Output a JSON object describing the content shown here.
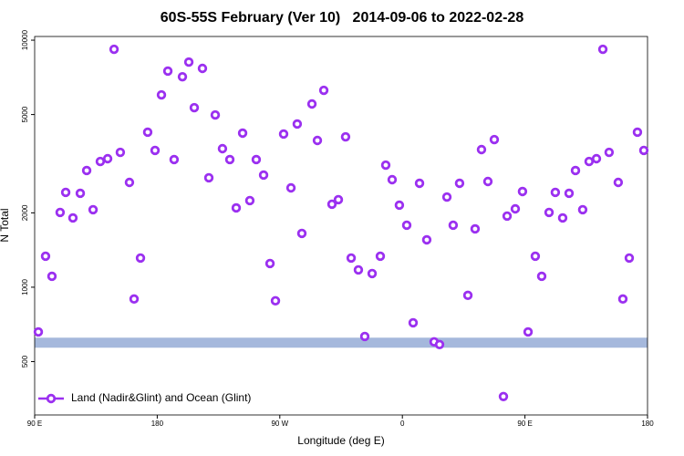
{
  "chart_data": {
    "type": "scatter",
    "title": "60S-55S February (Ver 10)   2014-09-06 to 2022-02-28",
    "xlabel": "Longitude (deg E)",
    "ylabel": "N Total",
    "log_y": true,
    "grid": false,
    "legend": "bottom-left",
    "xlim": [
      90,
      540
    ],
    "ylim": [
      304,
      10350
    ],
    "xticks": [
      {
        "value": 90,
        "label": "90 E"
      },
      {
        "value": 180,
        "label": "180"
      },
      {
        "value": 270,
        "label": "90 W"
      },
      {
        "value": 360,
        "label": "0"
      },
      {
        "value": 450,
        "label": "90 E"
      },
      {
        "value": 540,
        "label": "180"
      }
    ],
    "yticks": [
      500,
      1000,
      2000,
      5000,
      10000
    ],
    "hline": {
      "value": 596,
      "color": "#a5b8dc"
    },
    "series": [
      {
        "name": "Land (Nadir&Glint) and Ocean (Glint)",
        "color": "#9b30f0",
        "x": [
          92.7,
          98.0,
          102.7,
          108.7,
          112.8,
          118.1,
          123.5,
          128.2,
          132.9,
          138.2,
          143.6,
          148.3,
          152.9,
          159.6,
          163.0,
          167.7,
          173.0,
          178.4,
          183.1,
          187.8,
          192.4,
          198.5,
          203.2,
          207.2,
          213.2,
          217.9,
          222.6,
          227.9,
          233.3,
          238.0,
          242.7,
          248.0,
          252.7,
          258.1,
          262.8,
          266.8,
          272.8,
          278.2,
          282.8,
          286.2,
          293.6,
          297.6,
          302.3,
          308.3,
          313.0,
          318.3,
          322.4,
          327.7,
          332.4,
          337.8,
          343.8,
          347.8,
          352.5,
          357.8,
          363.2,
          367.9,
          372.6,
          377.9,
          383.3,
          387.3,
          392.7,
          397.3,
          402.0,
          408.1,
          413.4,
          418.1,
          422.8,
          427.5,
          434.2,
          436.9,
          442.9,
          448.2,
          452.3,
          457.6,
          462.3,
          467.7,
          472.3,
          477.7,
          482.4,
          487.1,
          492.4,
          497.1,
          502.5,
          507.2,
          511.8,
          518.5,
          521.9,
          526.6,
          532.6,
          537.3
        ],
        "values": [
          659,
          1335,
          1107,
          2008,
          2420,
          1907,
          2399,
          2967,
          2060,
          3228,
          3313,
          9185,
          3515,
          2656,
          896,
          1313,
          4240,
          3580,
          6006,
          7495,
          3286,
          7112,
          8150,
          5331,
          7686,
          2773,
          4981,
          3638,
          3286,
          2094,
          4204,
          2242,
          3286,
          2844,
          1247,
          881,
          4169,
          2524,
          4577,
          1651,
          5518,
          3927,
          6266,
          2168,
          2261,
          4061,
          1313,
          1175,
          632,
          1136,
          1335,
          3121,
          2725,
          2148,
          1782,
          718,
          2634,
          1555,
          601,
          586,
          2318,
          1782,
          2634,
          927,
          1722,
          3607,
          2679,
          3960,
          361,
          1941,
          2076,
          2440,
          659,
          1335,
          1107,
          2008,
          2420,
          1907,
          2399,
          2967,
          2060,
          3228,
          3313,
          9185,
          3515,
          2656,
          896,
          1313,
          4240,
          3580
        ]
      }
    ]
  }
}
